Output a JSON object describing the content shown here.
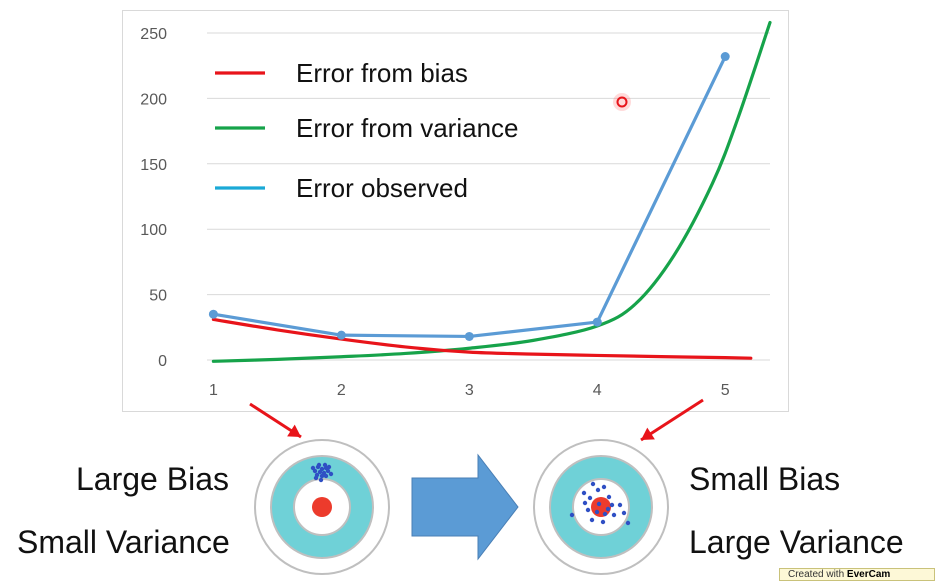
{
  "chart_data": {
    "type": "line",
    "x": [
      1,
      2,
      3,
      4,
      5
    ],
    "xlim": [
      0.95,
      5.35
    ],
    "ylim": [
      -15,
      265
    ],
    "ylim_visible": [
      0,
      250
    ],
    "yticks": [
      0,
      50,
      100,
      150,
      200,
      250
    ],
    "xticks": [
      1,
      2,
      3,
      4,
      5
    ],
    "grid": true,
    "legend_position": "top-left",
    "series": [
      {
        "name": "Error from bias",
        "color": "#e8141a",
        "points": [
          [
            1,
            31
          ],
          [
            1.5,
            23
          ],
          [
            2,
            16
          ],
          [
            2.5,
            10
          ],
          [
            3,
            6
          ],
          [
            3.5,
            4.5
          ],
          [
            4,
            3.5
          ],
          [
            4.5,
            2.6
          ],
          [
            5,
            1.8
          ],
          [
            5.2,
            1.4
          ]
        ]
      },
      {
        "name": "Error from variance",
        "color": "#16a34a",
        "points": [
          [
            1,
            -1
          ],
          [
            1.5,
            0.5
          ],
          [
            2,
            2.5
          ],
          [
            2.5,
            5
          ],
          [
            3,
            9
          ],
          [
            3.5,
            15
          ],
          [
            4,
            26
          ],
          [
            4.3,
            43
          ],
          [
            4.6,
            80
          ],
          [
            4.9,
            135
          ],
          [
            5.1,
            185
          ],
          [
            5.35,
            258
          ]
        ]
      },
      {
        "name": "Error observed",
        "color": "#5b9bd5",
        "legend_color": "#1aa9d6",
        "points": [
          [
            1,
            35
          ],
          [
            2,
            19
          ],
          [
            3,
            18
          ],
          [
            4,
            29
          ],
          [
            5,
            232
          ]
        ],
        "markers": true
      }
    ]
  },
  "labels": {
    "left_top": "Large Bias",
    "left_bottom": "Small Variance",
    "right_top": "Small Bias",
    "right_bottom": "Large Variance"
  },
  "colors": {
    "arrow_red": "#e8141a",
    "big_arrow": "#5b9bd5",
    "target_ring": "#6fd1d7",
    "target_bullseye": "#ec3b2c",
    "dot_blue": "#2f4fc4"
  },
  "watermark": {
    "prefix": "Created with",
    "brand": "EverCam"
  }
}
